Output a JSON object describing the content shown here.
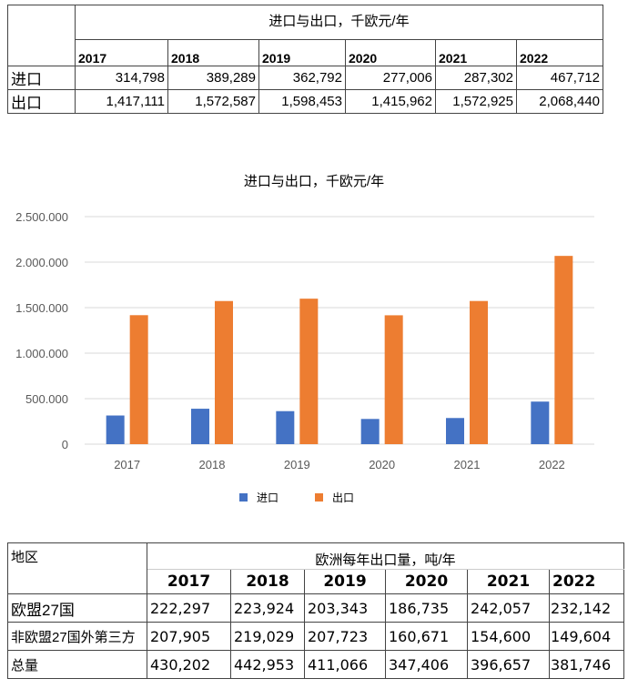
{
  "table1": {
    "title": "进口与出口，千欧元/年",
    "years": [
      "2017",
      "2018",
      "2019",
      "2020",
      "2021",
      "2022"
    ],
    "rows": [
      {
        "label": "进口",
        "values": [
          "314,798",
          "389,289",
          "362,792",
          "277,006",
          "287,302",
          "467,712"
        ]
      },
      {
        "label": "出口",
        "values": [
          "1,417,111",
          "1,572,587",
          "1,598,453",
          "1,415,962",
          "1,572,925",
          "2,068,440"
        ]
      }
    ]
  },
  "chart_data": {
    "type": "bar",
    "title": "进口与出口，千欧元/年",
    "categories": [
      "2017",
      "2018",
      "2019",
      "2020",
      "2021",
      "2022"
    ],
    "series": [
      {
        "name": "进口",
        "color": "#4472C4",
        "values": [
          314798,
          389289,
          362792,
          277006,
          287302,
          467712
        ]
      },
      {
        "name": "出口",
        "color": "#ED7D31",
        "values": [
          1417111,
          1572587,
          1598453,
          1415962,
          1572925,
          2068440
        ]
      }
    ],
    "yticks": [
      "0",
      "500.000",
      "1.000.000",
      "1.500.000",
      "2.000.000",
      "2.500.000"
    ],
    "ylim": [
      0,
      2500000
    ],
    "grid": true,
    "legend": "bottom"
  },
  "table3": {
    "corner": "地区",
    "title": "欧洲每年出口量，吨/年",
    "years": [
      "2017",
      "2018",
      "2019",
      "2020",
      "2021",
      "2022"
    ],
    "rows": [
      {
        "label": "欧盟27国",
        "values": [
          "222,297",
          "223,924",
          "203,343",
          "186,735",
          "242,057",
          "232,142"
        ]
      },
      {
        "label": "非欧盟27国外第三方",
        "values": [
          "207,905",
          "219,029",
          "207,723",
          "160,671",
          "154,600",
          "149,604"
        ]
      },
      {
        "label": "总量",
        "values": [
          "430,202",
          "442,953",
          "411,066",
          "347,406",
          "396,657",
          "381,746"
        ]
      }
    ]
  }
}
